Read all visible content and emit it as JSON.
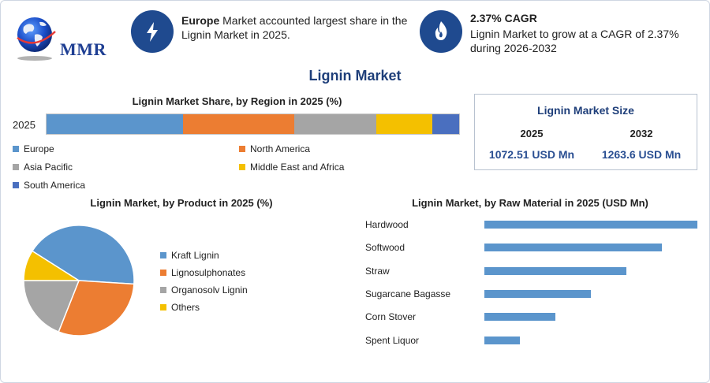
{
  "brand": {
    "logo_text": "MMR"
  },
  "header": {
    "block1": {
      "bold": "Europe",
      "text": " Market accounted largest share in the Lignin Market in 2025."
    },
    "block2": {
      "title": "2.37% CAGR",
      "text": "Lignin Market to grow at a CAGR of 2.37% during 2026-2032"
    }
  },
  "main_title": "Lignin Market",
  "size_box": {
    "title": "Lignin Market Size",
    "year1": "2025",
    "value1": "1072.51 USD Mn",
    "year2": "2032",
    "value2": "1263.6 USD Mn"
  },
  "chart_data": [
    {
      "type": "bar",
      "stacked": true,
      "orientation": "horizontal",
      "title": "Lignin Market Share, by Region in 2025 (%)",
      "categories": [
        "2025"
      ],
      "series": [
        {
          "name": "Europe",
          "values": [
            33
          ],
          "color": "#5b95cc"
        },
        {
          "name": "North America",
          "values": [
            27
          ],
          "color": "#ec7d32"
        },
        {
          "name": "Asia Pacific",
          "values": [
            20
          ],
          "color": "#a5a5a5"
        },
        {
          "name": "Middle East and Africa",
          "values": [
            13.5
          ],
          "color": "#f4c000"
        },
        {
          "name": "South America",
          "values": [
            6.5
          ],
          "color": "#4a6fbf"
        }
      ],
      "legend": "bottom"
    },
    {
      "type": "pie",
      "title": "Lignin Market, by Product in 2025 (%)",
      "slices": [
        {
          "name": "Kraft Lignin",
          "value": 42,
          "color": "#5b95cc"
        },
        {
          "name": "Lignosulphonates",
          "value": 30,
          "color": "#ec7d32"
        },
        {
          "name": "Organosolv Lignin",
          "value": 19,
          "color": "#a5a5a5"
        },
        {
          "name": "Others",
          "value": 9,
          "color": "#f4c000"
        }
      ],
      "legend": "right"
    },
    {
      "type": "bar",
      "orientation": "horizontal",
      "title": "Lignin Market, by Raw Material in 2025 (USD Mn)",
      "categories": [
        "Hardwood",
        "Softwood",
        "Straw",
        "Sugarcane Bagasse",
        "Corn Stover",
        "Spent Liquor"
      ],
      "values": [
        270,
        225,
        180,
        135,
        90,
        45
      ],
      "color": "#5b95cc"
    }
  ]
}
